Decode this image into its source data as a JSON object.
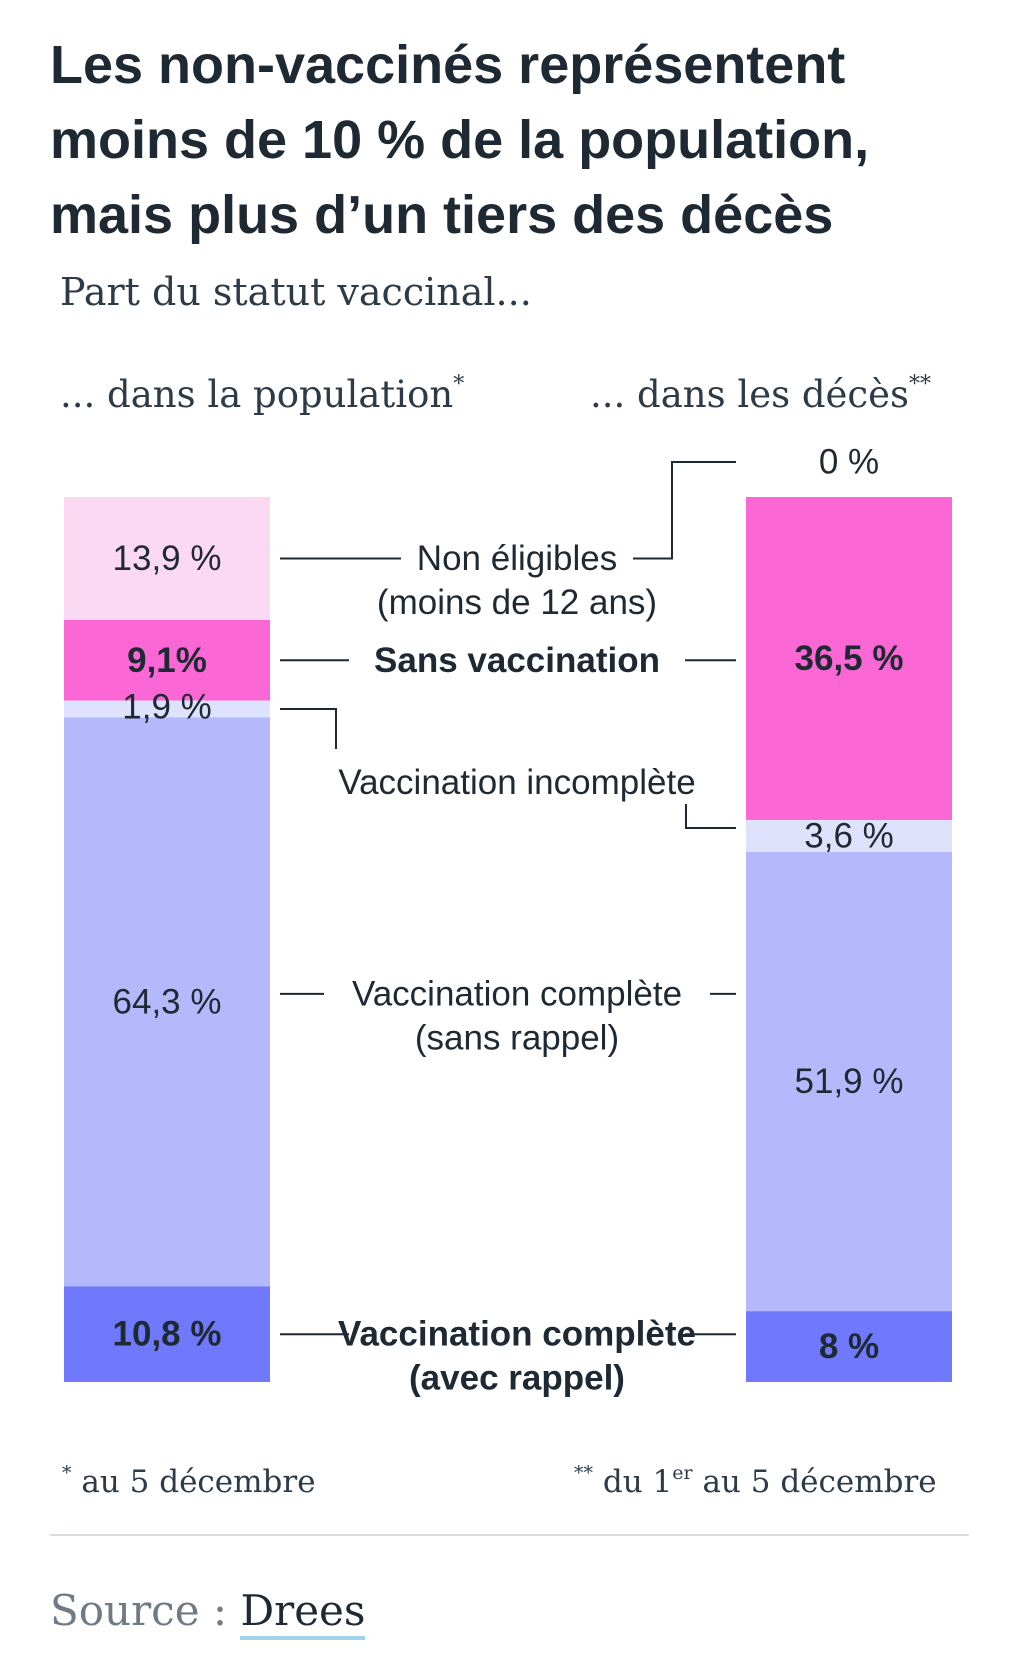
{
  "title_lines": [
    "Les non-vaccinés représentent",
    "moins de 10 % de la population,",
    "mais plus d’un tiers des décès"
  ],
  "subtitle": "Part du statut vaccinal...",
  "columns": {
    "population": {
      "label": "... dans la population",
      "mark": "*"
    },
    "deaths": {
      "label": "... dans les décès",
      "mark": "**"
    }
  },
  "footnotes": {
    "population": {
      "mark": "*",
      "text": "au 5 décembre"
    },
    "deaths": {
      "mark": "**",
      "pre": "du 1",
      "sup": "er",
      "post": "au 5 décembre"
    }
  },
  "source": {
    "label": "Source :",
    "name": "Drees"
  },
  "chart_data": {
    "type": "bar",
    "stacked": true,
    "orientation": "vertical",
    "units": "%",
    "title": "Les non-vaccinés représentent moins de 10 % de la population, mais plus d’un tiers des décès",
    "ylim": [
      0,
      100
    ],
    "categories": [
      "... dans la population",
      "... dans les décès"
    ],
    "series": [
      {
        "key": "non_eligible",
        "name_lines": [
          "Non éligibles",
          "(moins de 12 ans)"
        ],
        "bold": false,
        "color": "#fcd9f3",
        "values": [
          13.9,
          0
        ],
        "value_labels": [
          "13,9 %",
          "0 %"
        ]
      },
      {
        "key": "unvaccinated",
        "name_lines": [
          "Sans vaccination"
        ],
        "bold": true,
        "color": "#fb68d6",
        "values": [
          9.1,
          36.5
        ],
        "value_labels": [
          "9,1%",
          "36,5 %"
        ]
      },
      {
        "key": "incomplete",
        "name_lines": [
          "Vaccination incomplète"
        ],
        "bold": false,
        "color": "#dfe2fc",
        "values": [
          1.9,
          3.6
        ],
        "value_labels": [
          "1,9 %",
          "3,6 %"
        ]
      },
      {
        "key": "complete_no_booster",
        "name_lines": [
          "Vaccination complète",
          "(sans rappel)"
        ],
        "bold": false,
        "color": "#b4b9fb",
        "values": [
          64.3,
          51.9
        ],
        "value_labels": [
          "64,3 %",
          "51,9 %"
        ]
      },
      {
        "key": "complete_booster",
        "name_lines": [
          "Vaccination complète",
          "(avec rappel)"
        ],
        "bold": true,
        "color": "#7079fb",
        "values": [
          10.8,
          8
        ],
        "value_labels": [
          "10,8 %",
          "8 %"
        ]
      }
    ],
    "text_color": "#1f2933",
    "connector_color": "#1f2933"
  }
}
